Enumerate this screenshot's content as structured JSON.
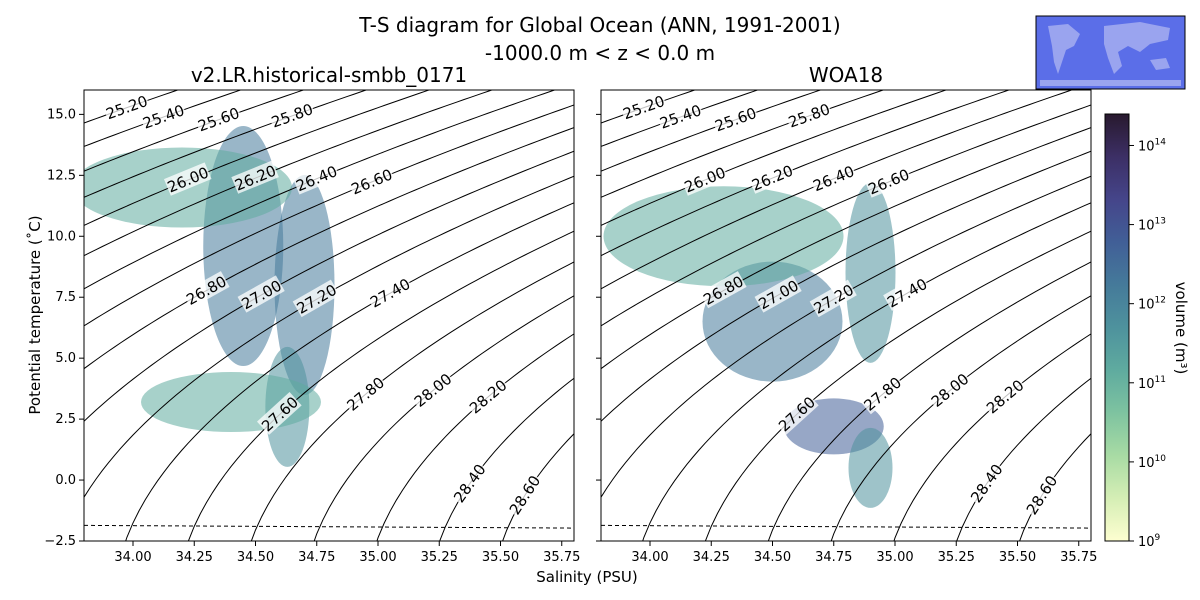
{
  "figure": {
    "title_line1": "T-S diagram for Global Ocean (ANN, 1991-2001)",
    "title_line2": "-1000.0 m < z < 0.0 m",
    "xlabel": "Salinity (PSU)",
    "ylabel": "Potential temperature (˚C)",
    "colorbar_label": "volume (m³)",
    "map_inset": {
      "ocean_color": "#5b6ee8",
      "land_color": "#9aa4ef"
    }
  },
  "chart_data": [
    {
      "type": "heatmap",
      "title": "v2.LR.historical-smbb_0171",
      "xlabel": "Salinity (PSU)",
      "ylabel": "Potential temperature (˚C)",
      "xlim": [
        33.8,
        35.8
      ],
      "ylim": [
        -2.5,
        16
      ],
      "xticks": [
        "34.00",
        "34.25",
        "34.50",
        "34.75",
        "35.00",
        "35.25",
        "35.50",
        "35.75"
      ],
      "yticks": [
        "−2.5",
        "0.0",
        "2.5",
        "5.0",
        "7.5",
        "10.0",
        "12.5",
        "15.0"
      ],
      "freezing_line": {
        "style": "dashed",
        "points": [
          [
            33.8,
            -1.86
          ],
          [
            35.8,
            -1.97
          ]
        ]
      },
      "density_contours": [
        "25.20",
        "25.40",
        "25.60",
        "25.80",
        "26.00",
        "26.20",
        "26.40",
        "26.60",
        "26.80",
        "27.00",
        "27.20",
        "27.40",
        "27.60",
        "27.80",
        "28.00",
        "28.20",
        "28.40",
        "28.60"
      ],
      "colormap": "deep",
      "colorscale": "log"
    },
    {
      "type": "heatmap",
      "title": "WOA18",
      "xlabel": "Salinity (PSU)",
      "xlim": [
        33.8,
        35.8
      ],
      "ylim": [
        -2.5,
        16
      ],
      "xticks": [
        "34.00",
        "34.25",
        "34.50",
        "34.75",
        "35.00",
        "35.25",
        "35.50",
        "35.75"
      ],
      "freezing_line": {
        "style": "dashed",
        "points": [
          [
            33.8,
            -1.86
          ],
          [
            35.8,
            -1.97
          ]
        ]
      },
      "density_contours": [
        "25.20",
        "25.40",
        "25.60",
        "25.80",
        "26.00",
        "26.20",
        "26.40",
        "26.60",
        "26.80",
        "27.00",
        "27.20",
        "27.40",
        "27.60",
        "27.80",
        "28.00",
        "28.20",
        "28.40",
        "28.60"
      ],
      "colormap": "deep",
      "colorscale": "log"
    }
  ],
  "colorbar": {
    "scale": "log",
    "range": [
      1000000000.0,
      250000000000000.0
    ],
    "tick_exponents": [
      "9",
      "10",
      "11",
      "12",
      "13",
      "14"
    ],
    "tick_base": "10",
    "colors": [
      "#fdfed0",
      "#d5eeb5",
      "#a8dba4",
      "#7ec3a0",
      "#5fab9f",
      "#4e929d",
      "#457a9a",
      "#415f97",
      "#45458a",
      "#3c2f65",
      "#28192e"
    ]
  }
}
